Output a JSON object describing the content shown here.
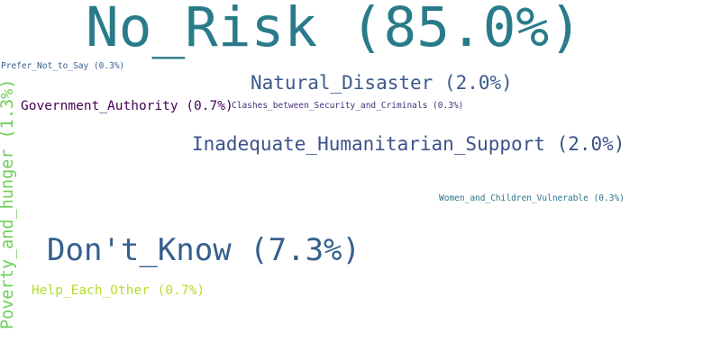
{
  "words": {
    "no_risk": {
      "text": "No_Risk (85.0%)",
      "color": "#2a7b8a"
    },
    "natural": {
      "text": "Natural_Disaster (2.0%)",
      "color": "#3b5a8c"
    },
    "prefer": {
      "text": "Prefer_Not_to_Say (0.3%)",
      "color": "#355e8d"
    },
    "govt": {
      "text": "Government_Authority (0.7%)",
      "color": "#440154"
    },
    "clashes": {
      "text": "Clashes_between_Security_and_Criminals (0.3%)",
      "color": "#472d7b"
    },
    "inadequate": {
      "text": "Inadequate_Humanitarian_Support (2.0%)",
      "color": "#3b528b"
    },
    "women": {
      "text": "Women_and_Children_Vulnerable (0.3%)",
      "color": "#2c728e"
    },
    "dont_know": {
      "text": "Don't_Know (7.3%)",
      "color": "#355f8d"
    },
    "help": {
      "text": "Help_Each_Other (0.7%)",
      "color": "#b5de2b"
    },
    "poverty": {
      "text": "Poverty_and_hunger (1.3%)",
      "color": "#6ece58"
    }
  }
}
